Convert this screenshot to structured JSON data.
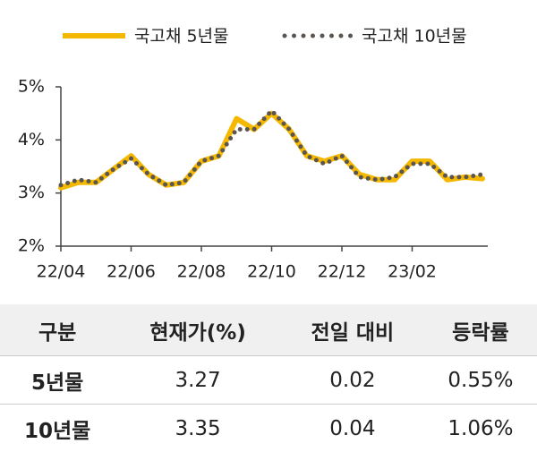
{
  "chart_data": {
    "type": "line",
    "categories": [
      "22/04",
      null,
      null,
      null,
      "22/06",
      null,
      null,
      null,
      "22/08",
      null,
      null,
      null,
      "22/10",
      null,
      null,
      null,
      "22/12",
      null,
      null,
      null,
      "23/02",
      null,
      null,
      null,
      null
    ],
    "series": [
      {
        "name": "국고채 5년물",
        "color": "#f5b800",
        "values": [
          3.1,
          3.2,
          3.2,
          3.45,
          3.7,
          3.35,
          3.15,
          3.2,
          3.6,
          3.7,
          4.4,
          4.2,
          4.5,
          4.2,
          3.7,
          3.6,
          3.7,
          3.35,
          3.25,
          3.25,
          3.6,
          3.6,
          3.25,
          3.3,
          3.27
        ]
      },
      {
        "name": "국고채 10년물",
        "color": "#5a5550",
        "values": [
          3.15,
          3.25,
          3.2,
          3.45,
          3.65,
          3.35,
          3.15,
          3.2,
          3.6,
          3.7,
          4.2,
          4.2,
          4.55,
          4.2,
          3.7,
          3.55,
          3.7,
          3.3,
          3.25,
          3.3,
          3.55,
          3.55,
          3.3,
          3.3,
          3.35
        ]
      }
    ],
    "ylim": [
      2,
      5
    ],
    "yticks": [
      {
        "value": 2,
        "label": "2%"
      },
      {
        "value": 3,
        "label": "3%"
      },
      {
        "value": 4,
        "label": "4%"
      },
      {
        "value": 5,
        "label": "5%"
      }
    ]
  },
  "table": {
    "header": [
      "구분",
      "현재가(%)",
      "전일 대비",
      "등락률"
    ],
    "rows": [
      [
        "5년물",
        "3.27",
        "0.02",
        "0.55%"
      ],
      [
        "10년물",
        "3.35",
        "0.04",
        "1.06%"
      ]
    ]
  }
}
